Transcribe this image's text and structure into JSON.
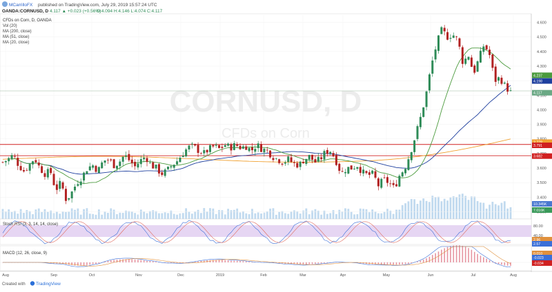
{
  "header": {
    "publisher_name": "MCarrilloFX",
    "published_text": "published on TradingView.com, July 29, 2019 15:57:24 UTC",
    "symbol_line": "OANDA:CORNUSD, D",
    "change": "4.117 ▲ +0.023 (+0.56%)",
    "ohlc": "O:4.094 H:4.146 L:4.074 C:4.117"
  },
  "legend": {
    "title": "CFDs on Corn, D, OANDA",
    "items": [
      "Vol (20)",
      "MA (200, close)",
      "MA (51, close)",
      "MA (20, close)"
    ]
  },
  "watermark": {
    "symbol": "CORNUSD, D",
    "description": "CFDs on Corn"
  },
  "oscillators": {
    "stoch_label": "Stoch RSI (3, 3, 14, 14, close)",
    "macd_label": "MACD (12, 26, close, 9)"
  },
  "footer": {
    "created_with": "Created with",
    "brand": "TradingView"
  },
  "colors": {
    "up": "#2e8b57",
    "down": "#b22222",
    "ma200": "#f0a030",
    "ma51": "#1e3f9e",
    "ma20": "#4a9a3c",
    "sr_line": "#d02020",
    "volume": "#a6cbe8",
    "stoch_band": "#e6d6f3",
    "stoch_k": "#3a6fd8",
    "stoch_d": "#e06a5c",
    "macd_line": "#3a6fd8",
    "macd_signal": "#e0903c"
  },
  "chart_data": {
    "type": "candlestick",
    "symbol": "OANDA:CORNUSD",
    "timeframe": "D",
    "x_labels": [
      "Aug",
      "Sep",
      "Oct",
      "Nov",
      "Dec",
      "2019",
      "Feb",
      "Mar",
      "Apr",
      "May",
      "Jun",
      "Jul",
      "Aug"
    ],
    "y_ticks": [
      3.3,
      3.4,
      3.5,
      3.6,
      3.7,
      3.8,
      3.9,
      4.0,
      4.1,
      4.2,
      4.3,
      4.4,
      4.5,
      4.6
    ],
    "y_tick_labels": [
      "3.300",
      "3.400",
      "3.500",
      "3.600",
      "3.700",
      "3.800",
      "3.900",
      "4.000",
      "4.100",
      "4.200",
      "4.300",
      "4.400",
      "4.500",
      "4.600"
    ],
    "ylim": [
      3.25,
      4.65
    ],
    "close_path": [
      3.64,
      3.66,
      3.69,
      3.62,
      3.58,
      3.62,
      3.67,
      3.6,
      3.56,
      3.58,
      3.45,
      3.5,
      3.38,
      3.43,
      3.5,
      3.54,
      3.6,
      3.62,
      3.58,
      3.65,
      3.66,
      3.62,
      3.64,
      3.69,
      3.65,
      3.61,
      3.65,
      3.68,
      3.62,
      3.6,
      3.56,
      3.58,
      3.62,
      3.65,
      3.7,
      3.74,
      3.75,
      3.72,
      3.7,
      3.73,
      3.75,
      3.73,
      3.76,
      3.74,
      3.76,
      3.74,
      3.75,
      3.72,
      3.76,
      3.73,
      3.72,
      3.68,
      3.66,
      3.64,
      3.66,
      3.63,
      3.62,
      3.66,
      3.68,
      3.64,
      3.66,
      3.71,
      3.72,
      3.65,
      3.56,
      3.6,
      3.6,
      3.62,
      3.57,
      3.55,
      3.56,
      3.48,
      3.52,
      3.5,
      3.46,
      3.55,
      3.6,
      3.7,
      3.82,
      3.95,
      4.1,
      4.3,
      4.45,
      4.55,
      4.5,
      4.52,
      4.48,
      4.32,
      4.38,
      4.25,
      4.35,
      4.45,
      4.38,
      4.2,
      4.22,
      4.16,
      4.12
    ],
    "moving_averages": [
      {
        "name": "MA (200, close)",
        "last": 4.237
      },
      {
        "name": "MA (51, close)",
        "last": 4.198
      },
      {
        "name": "MA (20, close)",
        "last": 4.117
      }
    ],
    "price_tags": [
      {
        "label": "4.237",
        "value": 4.237,
        "color": "#4a9a3c"
      },
      {
        "label": "4.198",
        "value": 4.198,
        "color": "#1e3f9e"
      },
      {
        "label": "4.117",
        "value": 4.117,
        "color": "#6aa884"
      },
      {
        "label": "3.778",
        "value": 3.778,
        "color": "#f0a030"
      },
      {
        "label": "3.791",
        "value": 3.756,
        "color": "#d02020"
      },
      {
        "label": "3.682",
        "value": 3.682,
        "color": "#d02020"
      }
    ],
    "horizontal_lines": [
      3.762,
      3.685
    ],
    "volume_tags": [
      {
        "label": "10.345K",
        "color": "#4a78d0"
      },
      {
        "label": "7.016K",
        "color": "#3a9a5a"
      }
    ],
    "stoch_rsi": {
      "ticks": [
        "80.00",
        "40.00"
      ],
      "tags": [
        {
          "label": "2.96",
          "color": "#e0903c"
        },
        {
          "label": "2.57",
          "color": "#3a6fd8"
        }
      ]
    },
    "macd": {
      "tags": [
        {
          "label": "0.010",
          "color": "#e0903c"
        },
        {
          "label": "-0.023",
          "color": "#3a6fd8"
        },
        {
          "label": "-0.034",
          "color": "#d02020"
        }
      ]
    }
  }
}
